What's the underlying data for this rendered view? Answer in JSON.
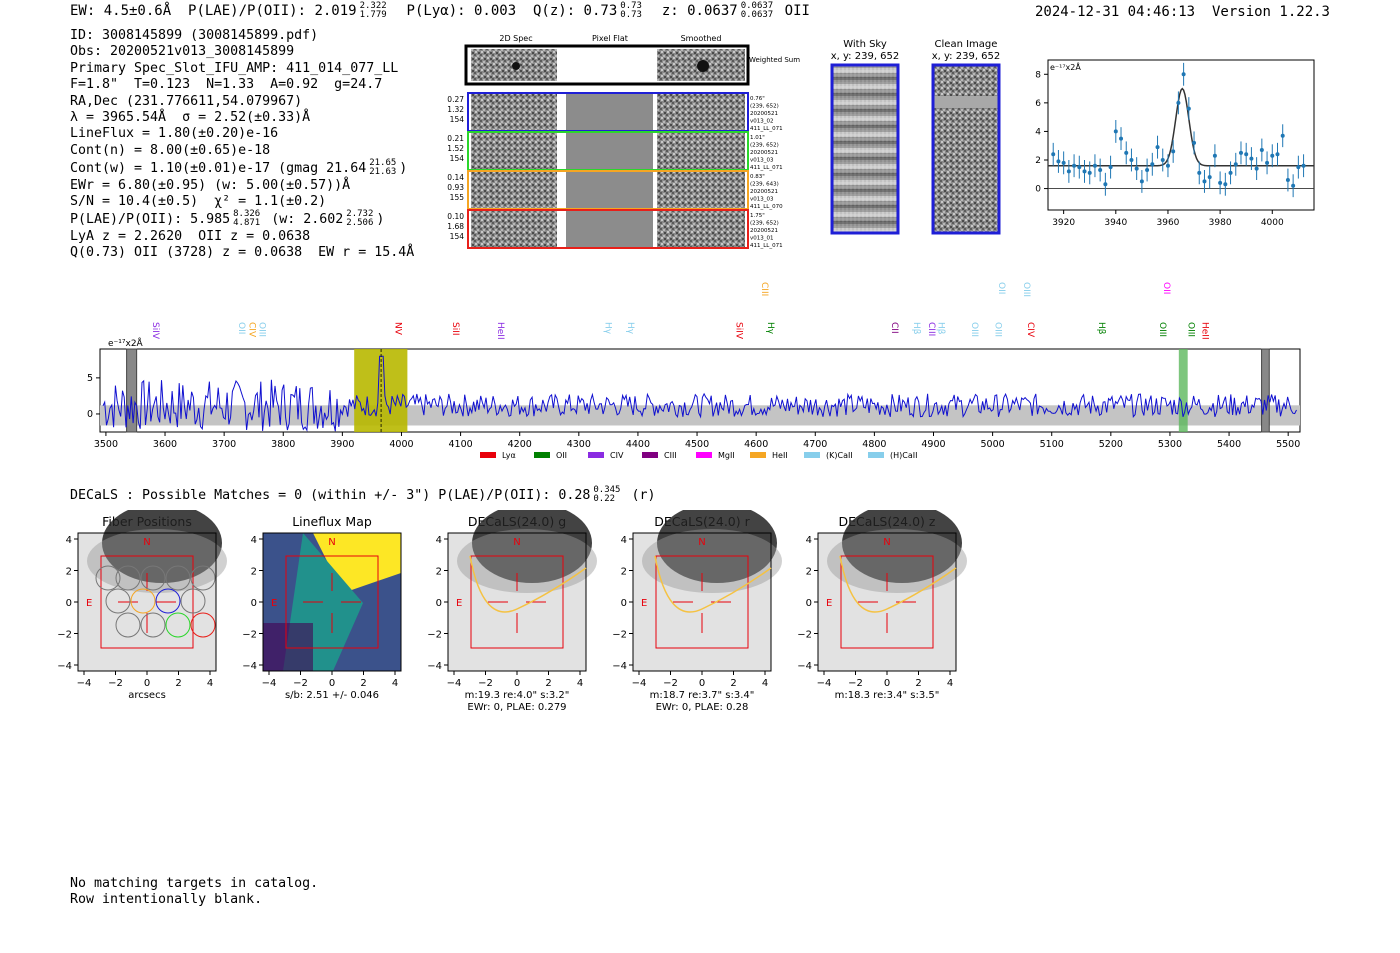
{
  "header": {
    "ew": "EW: 4.5±0.6Å",
    "plae": "P(LAE)/P(OII): 2.019",
    "plae_hi": "2.322",
    "plae_lo": "1.779",
    "plya": "P(Lyα): 0.003",
    "qz": "Q(z): 0.73",
    "qz_hi": "0.73",
    "qz_lo": "0.73",
    "z": "z: 0.0637",
    "z_hi": "0.0637",
    "z_lo": "0.0637",
    "line": "OII",
    "datetime": "2024-12-31 04:46:13",
    "version": "Version 1.22.3"
  },
  "info": {
    "id": "ID: 3008145899 (3008145899.pdf)",
    "obs": "Obs: 20200521v013_3008145899",
    "primary": "Primary Spec_Slot_IFU_AMP: 411_014_077_LL",
    "fit": "F=1.8\"  T=0.123  N=1.33  A=0.92  g=24.7",
    "radec": "RA,Dec (231.776611,54.079967)",
    "lambda": "λ = 3965.54Å  σ = 2.52(±0.33)Å",
    "lineflux": "LineFlux = 1.80(±0.20)e-16",
    "contn": "Cont(n) = 8.00(±0.65)e-18",
    "contw": "Cont(w) = 1.10(±0.01)e-17 (gmag 21.64",
    "contw_hi": "21.65",
    "contw_lo": "21.63",
    "ewr": "EWr = 6.80(±0.95) (w: 5.00(±0.57))Å",
    "sn": "S/N = 10.4(±0.5)  χ² = 1.1(±0.2)",
    "plae2": "P(LAE)/P(OII): 5.985",
    "plae2_hi": "8.326",
    "plae2_lo": "4.871",
    "plae2_w": "(w: 2.602",
    "plae2_w_hi": "2.732",
    "plae2_w_lo": "2.506",
    "lya": "LyA z = 2.2620  OII z = 0.0638",
    "q": "Q(0.73) OII (3728) z = 0.0638  EW r = 15.4Å"
  },
  "cutouts": {
    "columns": [
      "2D Spec",
      "Pixel Flat",
      "Smoothed"
    ],
    "weighted_label": "Weighted Sum",
    "rows": [
      {
        "left": [
          "0.27",
          "1.32",
          "154"
        ],
        "right": [
          "0.76\"",
          "(239, 652)",
          "20200521",
          "v013_02",
          "411_LL_071"
        ],
        "color": "#1f1fd6"
      },
      {
        "left": [
          "0.21",
          "1.52",
          "154"
        ],
        "right": [
          "1.01\"",
          "(239, 652)",
          "20200521",
          "v013_03",
          "411_LL_071"
        ],
        "color": "#2bd62b"
      },
      {
        "left": [
          "0.14",
          "0.93",
          "155"
        ],
        "right": [
          "0.83\"",
          "(239, 643)",
          "20200521",
          "v013_03",
          "411_LL_070"
        ],
        "color": "#f5a623"
      },
      {
        "left": [
          "0.10",
          "1.68",
          "154"
        ],
        "right": [
          "1.75\"",
          "(239, 652)",
          "20200521",
          "v013_01",
          "411_LL_071"
        ],
        "color": "#e8201a"
      }
    ]
  },
  "sky": {
    "with_sky_title": "With Sky",
    "with_sky_xy": "x, y: 239, 652",
    "clean_title": "Clean Image",
    "clean_xy": "x, y: 239, 652"
  },
  "chart_data": [
    {
      "type": "line",
      "name": "line-fit",
      "title": "",
      "ylabel": "e⁻¹⁷x2Å",
      "xlim": [
        3914,
        4016
      ],
      "ylim": [
        -1.5,
        9
      ],
      "xticks": [
        "3920",
        "3940",
        "3960",
        "3980",
        "4000"
      ],
      "yticks": [
        "0",
        "2",
        "4",
        "6",
        "8"
      ],
      "x": [
        3916,
        3918,
        3920,
        3922,
        3924,
        3926,
        3928,
        3930,
        3932,
        3934,
        3936,
        3938,
        3940,
        3942,
        3944,
        3946,
        3948,
        3950,
        3952,
        3954,
        3956,
        3958,
        3960,
        3962,
        3964,
        3966,
        3968,
        3970,
        3972,
        3974,
        3976,
        3978,
        3980,
        3982,
        3984,
        3986,
        3988,
        3990,
        3992,
        3994,
        3996,
        3998,
        4000,
        4002,
        4004,
        4006,
        4008,
        4010,
        4012
      ],
      "values": [
        2.4,
        1.9,
        1.8,
        1.2,
        1.6,
        1.5,
        1.2,
        1.1,
        1.6,
        1.3,
        0.3,
        1.5,
        4.0,
        3.5,
        2.5,
        2.0,
        1.4,
        0.5,
        1.3,
        1.7,
        2.9,
        2.0,
        1.6,
        2.6,
        6.0,
        8.0,
        5.6,
        3.2,
        1.1,
        0.5,
        0.8,
        2.3,
        0.4,
        0.3,
        1.1,
        1.7,
        2.5,
        2.4,
        2.1,
        1.4,
        2.7,
        1.8,
        2.3,
        2.4,
        3.7,
        0.6,
        0.2,
        1.5,
        1.6
      ],
      "fit_peak": 7.0,
      "fit_center": 3965.5,
      "fit_continuum": 1.6
    },
    {
      "type": "line",
      "name": "full-spectrum",
      "ylabel": "e⁻¹⁷x2Å",
      "xlim": [
        3490,
        5520
      ],
      "ylim": [
        -2.5,
        9
      ],
      "xticks": [
        "3500",
        "3600",
        "3700",
        "3800",
        "3900",
        "4000",
        "4100",
        "4200",
        "4300",
        "4400",
        "4500",
        "4600",
        "4700",
        "4800",
        "4900",
        "5000",
        "5100",
        "5200",
        "5300",
        "5400",
        "5500"
      ],
      "yticks": [
        "0",
        "5"
      ],
      "highlight_region": [
        3920,
        4010
      ],
      "line_marker": 3965.5,
      "oiii_region": [
        5315,
        5330
      ],
      "masked_regions": [
        [
          3535,
          3552
        ],
        [
          5455,
          5468
        ]
      ],
      "emission_lines": [
        {
          "label": "SiIV",
          "x": 3575,
          "row": 1,
          "color": "#8a2be2"
        },
        {
          "label": "OII",
          "x": 3720,
          "row": 1,
          "color": "#87ceeb"
        },
        {
          "label": "CIV",
          "x": 3738,
          "row": 1,
          "color": "#f5a623"
        },
        {
          "label": "OIII",
          "x": 3755,
          "row": 1,
          "color": "#87ceeb"
        },
        {
          "label": "NV",
          "x": 3985,
          "row": 1,
          "color": "#e8000b"
        },
        {
          "label": "SiII",
          "x": 4082,
          "row": 1,
          "color": "#e8000b"
        },
        {
          "label": "HeII",
          "x": 4158,
          "row": 1,
          "color": "#8a2be2"
        },
        {
          "label": "Hγ",
          "x": 4340,
          "row": 1,
          "color": "#87ceeb"
        },
        {
          "label": "Hγ",
          "x": 4378,
          "row": 1,
          "color": "#87ceeb"
        },
        {
          "label": "SiIV",
          "x": 4562,
          "row": 1,
          "color": "#e8000b"
        },
        {
          "label": "CIII",
          "x": 4605,
          "row": 0,
          "color": "#f5a623"
        },
        {
          "label": "Hγ",
          "x": 4615,
          "row": 1,
          "color": "#008000"
        },
        {
          "label": "CII",
          "x": 4825,
          "row": 1,
          "color": "#800080"
        },
        {
          "label": "Hβ",
          "x": 4862,
          "row": 1,
          "color": "#87ceeb"
        },
        {
          "label": "CIII",
          "x": 4887,
          "row": 1,
          "color": "#8a2be2"
        },
        {
          "label": "Hβ",
          "x": 4903,
          "row": 1,
          "color": "#87ceeb"
        },
        {
          "label": "OIII",
          "x": 4960,
          "row": 1,
          "color": "#87ceeb"
        },
        {
          "label": "OIII",
          "x": 5000,
          "row": 1,
          "color": "#87ceeb"
        },
        {
          "label": "OII",
          "x": 5006,
          "row": 0,
          "color": "#87ceeb"
        },
        {
          "label": "OIII",
          "x": 5048,
          "row": 0,
          "color": "#87ceeb"
        },
        {
          "label": "CIV",
          "x": 5055,
          "row": 1,
          "color": "#e8000b"
        },
        {
          "label": "Hβ",
          "x": 5175,
          "row": 1,
          "color": "#008000"
        },
        {
          "label": "OII",
          "x": 5285,
          "row": 0,
          "color": "#ff00ff"
        },
        {
          "label": "OIII",
          "x": 5278,
          "row": 1,
          "color": "#008000"
        },
        {
          "label": "OIII",
          "x": 5326,
          "row": 1,
          "color": "#008000"
        },
        {
          "label": "HeII",
          "x": 5350,
          "row": 1,
          "color": "#e8000b"
        }
      ],
      "legend": [
        {
          "label": "Lyα",
          "color": "#e8000b"
        },
        {
          "label": "OII",
          "color": "#008000"
        },
        {
          "label": "CIV",
          "color": "#8a2be2"
        },
        {
          "label": "CIII",
          "color": "#800080"
        },
        {
          "label": "MgII",
          "color": "#ff00ff"
        },
        {
          "label": "HeII",
          "color": "#f5a623"
        },
        {
          "label": "(K)CaII",
          "color": "#87ceeb"
        },
        {
          "label": "(H)CaII",
          "color": "#87ceeb"
        }
      ]
    }
  ],
  "decals": {
    "title": "DECaLS : Possible Matches = 0 (within +/- 3\")  P(LAE)/P(OII): 0.28",
    "plae_hi": "0.345",
    "plae_lo": "0.22",
    "band": "(r)",
    "panels": [
      {
        "title": "Fiber Positions",
        "xlabel": "arcsecs",
        "cap2": ""
      },
      {
        "title": "Lineflux Map",
        "xlabel": "s/b: 2.51 +/- 0.046",
        "cap2": ""
      },
      {
        "title": "DECaLS(24.0) g",
        "xlabel": "m:19.3  re:4.0\"  s:3.2\"",
        "cap2": "EWr: 0, PLAE: 0.279"
      },
      {
        "title": "DECaLS(24.0) r",
        "xlabel": "m:18.7  re:3.7\"  s:3.4\"",
        "cap2": "EWr: 0, PLAE: 0.28"
      },
      {
        "title": "DECaLS(24.0) z",
        "xlabel": "m:18.3  re:3.4\"  s:3.5\"",
        "cap2": ""
      }
    ],
    "ticks": [
      "−4",
      "−2",
      "0",
      "2",
      "4"
    ],
    "north_label": "N",
    "east_label": "E"
  },
  "footer": {
    "line1": "No matching targets in catalog.",
    "line2": "Row intentionally blank."
  }
}
